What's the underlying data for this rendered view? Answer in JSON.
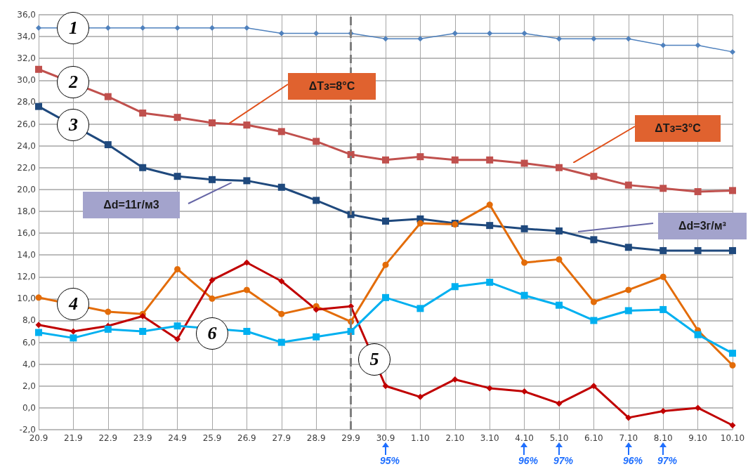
{
  "chart_data": {
    "type": "line",
    "categories": [
      "20.9",
      "21.9",
      "22.9",
      "23.9",
      "24.9",
      "25.9",
      "26.9",
      "27.9",
      "28.9",
      "29.9",
      "30.9",
      "1.10",
      "2.10",
      "3.10",
      "4.10",
      "5.10",
      "6.10",
      "7.10",
      "8.10",
      "9.10",
      "10.10"
    ],
    "series": [
      {
        "color": "#4f81bd",
        "marker": "diamond",
        "values": [
          34.8,
          null,
          34.8,
          34.8,
          34.8,
          34.8,
          34.8,
          34.3,
          34.3,
          34.3,
          33.8,
          33.8,
          34.3,
          34.3,
          34.3,
          33.8,
          33.8,
          33.8,
          33.2,
          33.2,
          32.6
        ]
      },
      {
        "color": "#c0504d",
        "marker": "square",
        "values": [
          31.0,
          null,
          28.5,
          27.0,
          26.6,
          26.1,
          25.9,
          25.3,
          24.4,
          23.2,
          22.7,
          23.0,
          22.7,
          22.7,
          22.4,
          22.0,
          21.2,
          20.4,
          20.1,
          19.8,
          19.9
        ]
      },
      {
        "color": "#1f497d",
        "marker": "square",
        "values": [
          27.6,
          null,
          24.1,
          22.0,
          21.2,
          20.9,
          20.8,
          20.2,
          19.0,
          17.7,
          17.1,
          17.3,
          16.9,
          16.7,
          16.4,
          16.2,
          15.4,
          14.7,
          14.4,
          14.4,
          14.4
        ]
      },
      {
        "color": "#e36c09",
        "marker": "circle",
        "values": [
          10.1,
          null,
          8.8,
          8.6,
          12.7,
          10.0,
          10.8,
          8.6,
          9.3,
          7.9,
          13.1,
          16.9,
          16.8,
          18.6,
          13.3,
          13.6,
          9.7,
          10.8,
          12.0,
          7.1,
          3.9
        ]
      },
      {
        "color": "#c00000",
        "marker": "diamond",
        "values": [
          7.6,
          7.0,
          7.5,
          8.4,
          6.3,
          11.7,
          13.3,
          11.6,
          9.0,
          9.3,
          2.0,
          1.0,
          2.6,
          1.8,
          1.5,
          0.4,
          2.0,
          -0.9,
          -0.3,
          0.0,
          -1.6
        ]
      },
      {
        "color": "#00b0f0",
        "marker": "square",
        "values": [
          6.9,
          6.4,
          7.2,
          7.0,
          7.5,
          null,
          7.0,
          6.0,
          6.5,
          7.0,
          10.1,
          9.1,
          11.1,
          11.5,
          10.3,
          9.4,
          8.0,
          8.9,
          9.0,
          6.7,
          5.0
        ]
      }
    ],
    "ylim": [
      -2,
      36
    ],
    "yticks": [
      {
        "value": -2,
        "label": "-2,0"
      },
      {
        "value": 0,
        "label": "0,0"
      },
      {
        "value": 2,
        "label": "2,0"
      },
      {
        "value": 4,
        "label": "4,0"
      },
      {
        "value": 6,
        "label": "6,0"
      },
      {
        "value": 8,
        "label": "8,0"
      },
      {
        "value": 10,
        "label": "10,0"
      },
      {
        "value": 12,
        "label": "12,0"
      },
      {
        "value": 14,
        "label": "14,0"
      },
      {
        "value": 16,
        "label": "16,0"
      },
      {
        "value": 18,
        "label": "18,0"
      },
      {
        "value": 20,
        "label": "20,0"
      },
      {
        "value": 22,
        "label": "22,0"
      },
      {
        "value": 24,
        "label": "24,0"
      },
      {
        "value": 26,
        "label": "26,0"
      },
      {
        "value": 28,
        "label": "28,0"
      },
      {
        "value": 30,
        "label": "30,0"
      },
      {
        "value": 32,
        "label": "32,0"
      },
      {
        "value": 34,
        "label": "34,0"
      },
      {
        "value": 36,
        "label": "36,0"
      }
    ],
    "grid": true,
    "line_style": "solid",
    "ref_lines": [
      {
        "axis": "x",
        "value": "29.9",
        "color": "#7f7f7f",
        "line_style": "dashed"
      }
    ],
    "annotations": [
      {
        "text": "1",
        "x": "21.9",
        "y": 34.8
      },
      {
        "text": "2",
        "x": "21.9",
        "y": 29.8
      },
      {
        "text": "3",
        "x": "21.9",
        "y": 25.9
      },
      {
        "text": "4",
        "x": "21.9",
        "y": 9.5
      },
      "5",
      "6",
      "ΔTз=8°C",
      "ΔTз=3°C",
      "Δd=11г/м3",
      "Δd=3г/м³",
      "95%",
      "96%",
      "97%",
      "96%",
      "97%"
    ]
  }
}
